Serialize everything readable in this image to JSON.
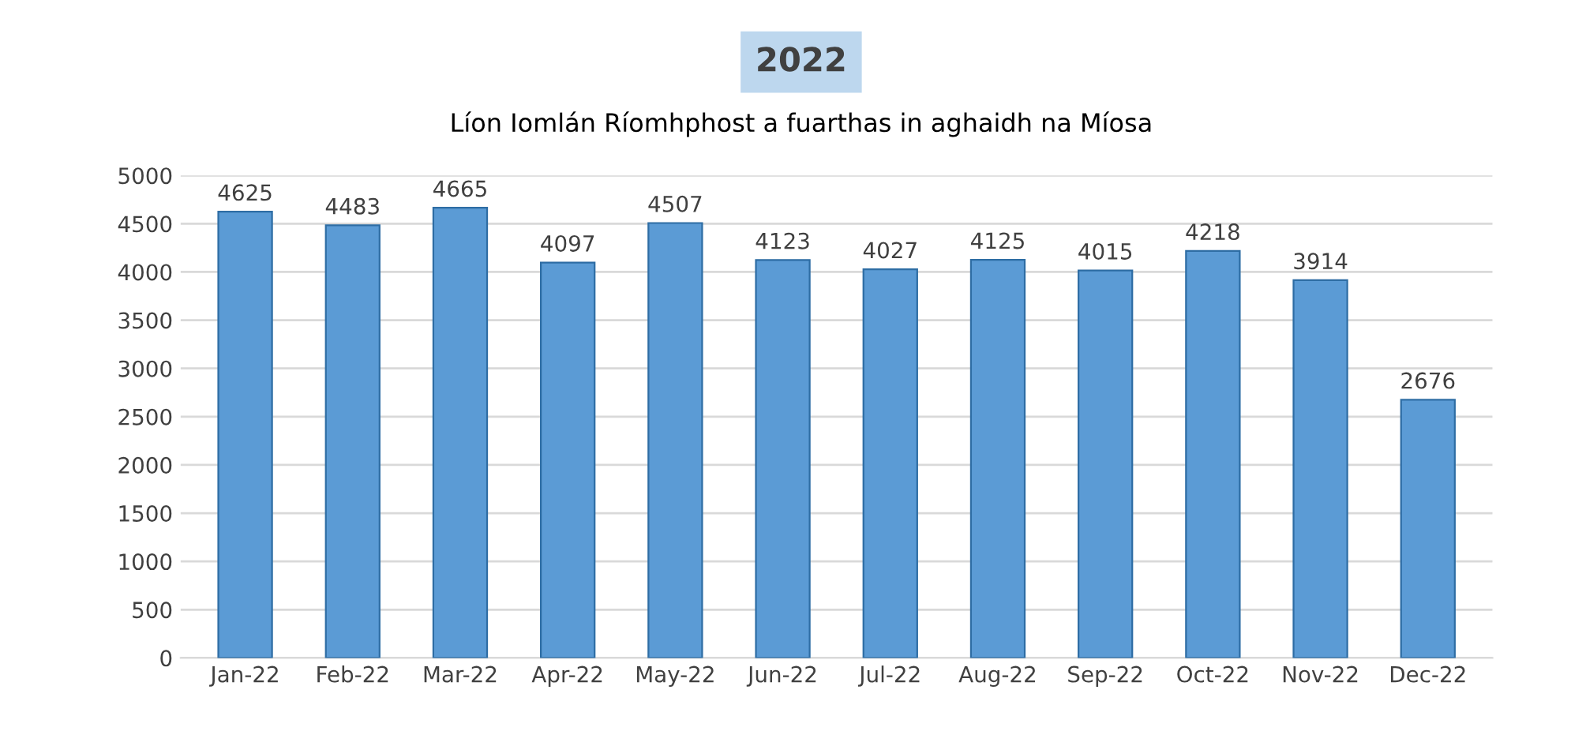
{
  "chart_data": {
    "type": "bar",
    "title": "2022",
    "subtitle": "Líon Iomlán Ríomhphost a fuarthas in aghaidh na Míosa",
    "categories": [
      "Jan-22",
      "Feb-22",
      "Mar-22",
      "Apr-22",
      "May-22",
      "Jun-22",
      "Jul-22",
      "Aug-22",
      "Sep-22",
      "Oct-22",
      "Nov-22",
      "Dec-22"
    ],
    "values": [
      4625,
      4483,
      4665,
      4097,
      4507,
      4123,
      4027,
      4125,
      4015,
      4218,
      3914,
      2676
    ],
    "color": "#5b9bd5",
    "ylim": [
      0,
      5000
    ],
    "yticks": [
      0,
      500,
      1000,
      1500,
      2000,
      2500,
      3000,
      3500,
      4000,
      4500,
      5000
    ],
    "grid": "y",
    "data_labels": true
  }
}
